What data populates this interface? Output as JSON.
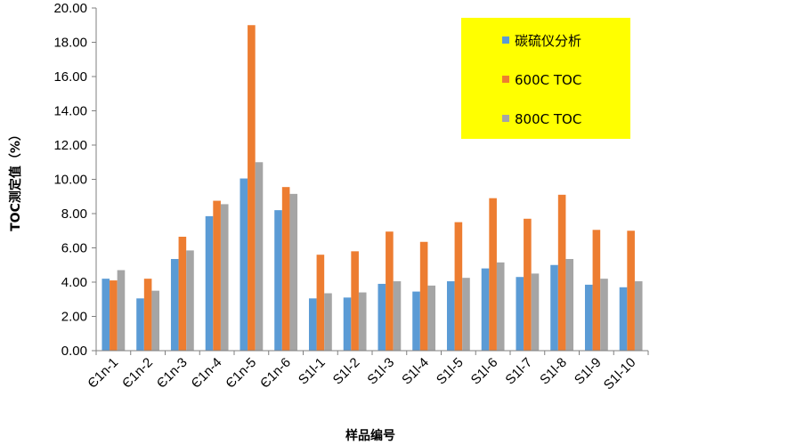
{
  "chart_data": {
    "type": "bar",
    "title": "",
    "xlabel": "样品编号",
    "ylabel": "TOC测定值（%）",
    "ylim": [
      0,
      20
    ],
    "ytick_step": 2,
    "ytick_format": "0.00",
    "grid": false,
    "legend_position": "top-right",
    "legend_background": "#ffff00",
    "categories": [
      "Є1n-1",
      "Є1n-2",
      "Є1n-3",
      "Є1n-4",
      "Є1n-5",
      "Є1n-6",
      "S1l-1",
      "S1l-2",
      "S1l-3",
      "S1l-4",
      "S1l-5",
      "S1l-6",
      "S1l-7",
      "S1l-8",
      "S1l-9",
      "S1l-10"
    ],
    "series": [
      {
        "name": "碳硫仪分析",
        "color": "#5b9bd5",
        "values": [
          4.2,
          3.05,
          5.35,
          7.85,
          10.05,
          8.2,
          3.05,
          3.1,
          3.9,
          3.45,
          4.05,
          4.8,
          4.3,
          5.0,
          3.85,
          3.7
        ]
      },
      {
        "name": "600C TOC",
        "color": "#ed7d31",
        "values": [
          4.1,
          4.2,
          6.65,
          8.75,
          19.0,
          9.55,
          5.6,
          5.8,
          6.95,
          6.35,
          7.5,
          8.9,
          7.7,
          9.1,
          7.05,
          7.0
        ]
      },
      {
        "name": "800C TOC",
        "color": "#a5a5a5",
        "values": [
          4.7,
          3.5,
          5.85,
          8.55,
          11.0,
          9.15,
          3.35,
          3.4,
          4.05,
          3.8,
          4.25,
          5.15,
          4.5,
          5.35,
          4.2,
          4.05
        ]
      }
    ]
  }
}
